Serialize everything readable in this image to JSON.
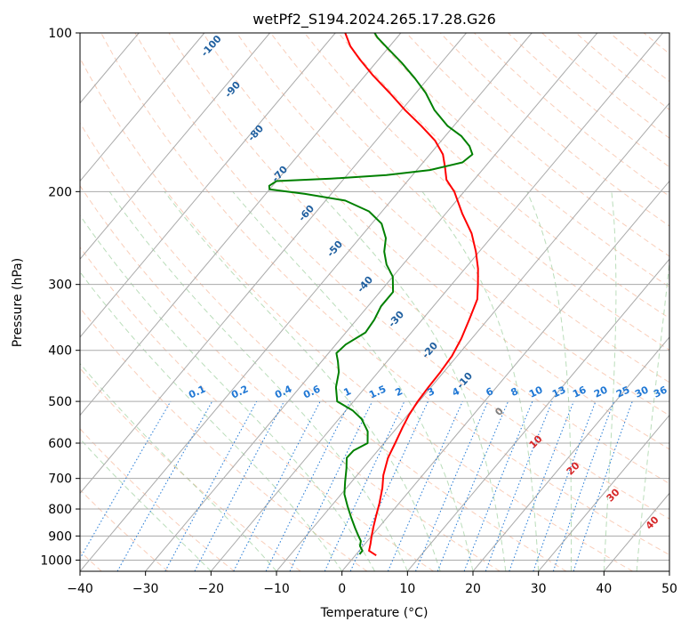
{
  "chart_data": {
    "type": "skew-t",
    "title": "wetPf2_S194.2024.265.17.28.G26",
    "xlabel": "Temperature (°C)",
    "ylabel": "Pressure (hPa)",
    "xlim": [
      -40,
      50
    ],
    "ylim": [
      1050,
      100
    ],
    "x_ticks": [
      -40,
      -30,
      -20,
      -10,
      0,
      10,
      20,
      30,
      40,
      50
    ],
    "y_ticks": [
      100,
      200,
      300,
      400,
      500,
      600,
      700,
      800,
      900,
      1000
    ],
    "grid": true,
    "series": [
      {
        "name": "",
        "color": "#ff0000",
        "points": [
          [
            3.2,
            980
          ],
          [
            1.5,
            960
          ],
          [
            0.8,
            930
          ],
          [
            0,
            900
          ],
          [
            -1,
            860
          ],
          [
            -2,
            820
          ],
          [
            -3,
            780
          ],
          [
            -4.5,
            730
          ],
          [
            -6,
            690
          ],
          [
            -7.5,
            640
          ],
          [
            -8.3,
            600
          ],
          [
            -9.2,
            560
          ],
          [
            -9.8,
            530
          ],
          [
            -10.2,
            500
          ],
          [
            -10.4,
            470
          ],
          [
            -10.5,
            440
          ],
          [
            -10.8,
            410
          ],
          [
            -11.6,
            380
          ],
          [
            -12.8,
            350
          ],
          [
            -14.2,
            320
          ],
          [
            -16,
            300
          ],
          [
            -18,
            280
          ],
          [
            -20.5,
            260
          ],
          [
            -23.5,
            240
          ],
          [
            -27.5,
            220
          ],
          [
            -31.5,
            200
          ],
          [
            -34.2,
            190
          ],
          [
            -36,
            180
          ],
          [
            -38,
            170
          ],
          [
            -41,
            160
          ],
          [
            -45,
            150
          ],
          [
            -49.5,
            140
          ],
          [
            -54,
            130
          ],
          [
            -59,
            120
          ],
          [
            -63,
            112
          ],
          [
            -66,
            106
          ],
          [
            -68.5,
            100
          ]
        ]
      },
      {
        "name": "",
        "color": "#008000",
        "points": [
          [
            0.5,
            975
          ],
          [
            0.5,
            960
          ],
          [
            -0.5,
            940
          ],
          [
            -1,
            920
          ],
          [
            -2,
            900
          ],
          [
            -3.5,
            870
          ],
          [
            -5.5,
            830
          ],
          [
            -7.5,
            790
          ],
          [
            -9.5,
            750
          ],
          [
            -11,
            710
          ],
          [
            -12.5,
            670
          ],
          [
            -13.8,
            640
          ],
          [
            -13.7,
            620
          ],
          [
            -12.5,
            600
          ],
          [
            -14,
            570
          ],
          [
            -16.5,
            540
          ],
          [
            -19,
            520
          ],
          [
            -22.5,
            500
          ],
          [
            -24.5,
            470
          ],
          [
            -26,
            440
          ],
          [
            -27.5,
            420
          ],
          [
            -28.8,
            405
          ],
          [
            -28.5,
            390
          ],
          [
            -27,
            370
          ],
          [
            -27.3,
            350
          ],
          [
            -28,
            330
          ],
          [
            -28,
            310
          ],
          [
            -30,
            290
          ],
          [
            -32.5,
            275
          ],
          [
            -34.5,
            260
          ],
          [
            -36,
            245
          ],
          [
            -38.5,
            230
          ],
          [
            -42,
            218
          ],
          [
            -47,
            208
          ],
          [
            -54,
            202
          ],
          [
            -60,
            198
          ],
          [
            -60.5,
            195
          ],
          [
            -60,
            191
          ],
          [
            -52,
            189
          ],
          [
            -44,
            186
          ],
          [
            -38,
            182
          ],
          [
            -34,
            176
          ],
          [
            -33.5,
            170
          ],
          [
            -35,
            164
          ],
          [
            -37.5,
            157
          ],
          [
            -41,
            150
          ],
          [
            -45,
            140
          ],
          [
            -48.5,
            130
          ],
          [
            -52,
            122
          ],
          [
            -56,
            114
          ],
          [
            -60,
            107
          ],
          [
            -63,
            102
          ],
          [
            -64,
            100
          ]
        ]
      }
    ],
    "dry_adiabat_labels": [
      "-100",
      "-90",
      "-80",
      "-70",
      "-60",
      "-50",
      "-40",
      "-30",
      "-20",
      "-10"
    ],
    "mixing_ratio_labels": [
      "0.1",
      "0.2",
      "0.4",
      "0.6",
      "1",
      "1.5",
      "2",
      "3",
      "4",
      "6",
      "8",
      "10",
      "13",
      "16",
      "20",
      "25",
      "30",
      "36"
    ],
    "moist_adiabat_labels": [
      "0",
      "10",
      "20",
      "30",
      "40"
    ],
    "colors": {
      "temperature": "#ff0000",
      "dewpoint": "#008000",
      "isotherm": "#aaaaaa",
      "dry_adiabat": "#f4a582",
      "moist_adiabat": "#8cc68c",
      "mixing_ratio": "#1f77d4",
      "dry_label": "#2060a0",
      "moist_label": "#d62728",
      "zero_label": "#7f7f7f"
    }
  }
}
